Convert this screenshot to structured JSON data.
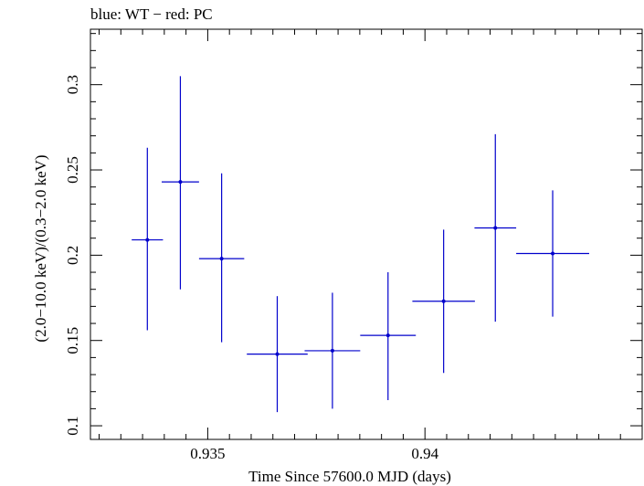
{
  "chart_data": {
    "type": "scatter",
    "title": "blue: WT − red: PC",
    "xlabel": "Time Since 57600.0 MJD (days)",
    "ylabel": "(2.0−10.0 keV)/(0.3−2.0 keV)",
    "xlim": [
      0.9323,
      0.945
    ],
    "ylim": [
      0.092,
      0.3325
    ],
    "x_major_ticks": [
      0.935,
      0.94
    ],
    "x_tick_labels": [
      "0.935",
      "0.94"
    ],
    "y_major_ticks": [
      0.1,
      0.15,
      0.2,
      0.25,
      0.3
    ],
    "y_tick_labels": [
      "0.1",
      "0.15",
      "0.2",
      "0.25",
      "0.3"
    ],
    "grid": false,
    "series": [
      {
        "color": "#0000cc",
        "points": [
          {
            "x": 0.93361,
            "xerr": 0.00036,
            "y": 0.209,
            "ylo": 0.156,
            "yhi": 0.263
          },
          {
            "x": 0.93437,
            "xerr": 0.00043,
            "y": 0.243,
            "ylo": 0.18,
            "yhi": 0.305
          },
          {
            "x": 0.93532,
            "xerr": 0.00052,
            "y": 0.198,
            "ylo": 0.149,
            "yhi": 0.248
          },
          {
            "x": 0.9366,
            "xerr": 0.0007,
            "y": 0.142,
            "ylo": 0.108,
            "yhi": 0.176
          },
          {
            "x": 0.93787,
            "xerr": 0.00064,
            "y": 0.144,
            "ylo": 0.11,
            "yhi": 0.178
          },
          {
            "x": 0.93915,
            "xerr": 0.00064,
            "y": 0.153,
            "ylo": 0.115,
            "yhi": 0.19
          },
          {
            "x": 0.94043,
            "xerr": 0.00072,
            "y": 0.173,
            "ylo": 0.131,
            "yhi": 0.215
          },
          {
            "x": 0.94162,
            "xerr": 0.00048,
            "y": 0.216,
            "ylo": 0.161,
            "yhi": 0.271
          },
          {
            "x": 0.94294,
            "xerr": 0.00084,
            "y": 0.201,
            "ylo": 0.164,
            "yhi": 0.238
          }
        ]
      }
    ]
  }
}
